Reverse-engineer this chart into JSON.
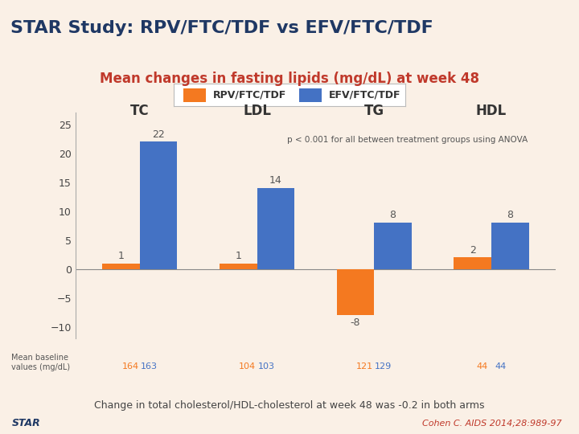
{
  "title_main": "STAR Study: RPV/FTC/TDF vs EFV/FTC/TDF",
  "subtitle": "Mean changes in fasting lipids (mg/dL) at week 48",
  "categories": [
    "TC",
    "LDL",
    "TG",
    "HDL"
  ],
  "rpv_values": [
    1,
    1,
    -8,
    2
  ],
  "efv_values": [
    22,
    14,
    8,
    8
  ],
  "rpv_color": "#F47920",
  "efv_color": "#4472C4",
  "rpv_label": "RPV/FTC/TDF",
  "efv_label": "EFV/FTC/TDF",
  "ylim": [
    -12,
    27
  ],
  "yticks": [
    -10,
    -5,
    0,
    5,
    10,
    15,
    20,
    25
  ],
  "baseline_rpv": [
    164,
    104,
    121,
    44
  ],
  "baseline_efv": [
    163,
    103,
    129,
    44
  ],
  "annotation": "p < 0.001 for all between treatment groups using ANOVA",
  "footer_left": "Change in total cholesterol/HDL-cholesterol at week 48 was -0.2 in both arms",
  "footer_star": "STAR",
  "footer_citation": "Cohen C. AIDS 2014;28:989-97",
  "bg_color": "#FAF0E6",
  "title_bg": "#FAF0E6",
  "title_color": "#1F3864",
  "subtitle_color": "#C0392B",
  "bar_width": 0.32,
  "title_line_color": "#1F3864",
  "orange_line_color": "#F47920"
}
